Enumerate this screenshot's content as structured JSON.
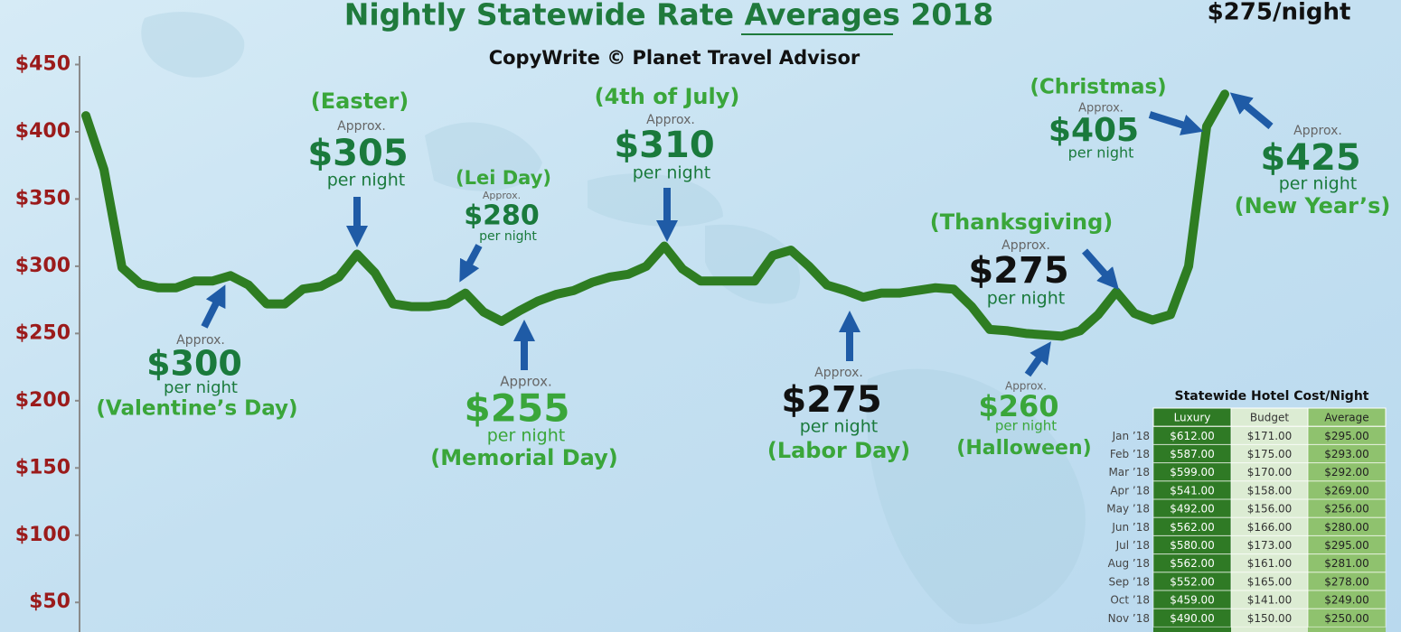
{
  "chart_data": {
    "type": "line",
    "title": "Nightly Statewide Rate Averages 2018",
    "subtitle": "CopyWrite © Planet Travel Advisor",
    "corner_note": "$275/night",
    "ylim": [
      28,
      498
    ],
    "yticks": [
      {
        "value": 50,
        "label": "$50"
      },
      {
        "value": 100,
        "label": "$100"
      },
      {
        "value": 150,
        "label": "$150"
      },
      {
        "value": 200,
        "label": "$200"
      },
      {
        "value": 250,
        "label": "$250"
      },
      {
        "value": 300,
        "label": "$300"
      },
      {
        "value": 350,
        "label": "$350"
      },
      {
        "value": 400,
        "label": "$400"
      },
      {
        "value": 450,
        "label": "$450"
      }
    ],
    "color": "#2e7d22",
    "values": [
      412,
      372,
      299,
      287,
      284,
      284,
      289,
      289,
      293,
      286,
      272,
      272,
      283,
      285,
      292,
      309,
      295,
      272,
      270,
      270,
      272,
      280,
      266,
      259,
      267,
      274,
      279,
      282,
      288,
      292,
      294,
      300,
      315,
      298,
      289,
      289,
      289,
      289,
      308,
      312,
      300,
      286,
      282,
      277,
      280,
      280,
      282,
      284,
      283,
      270,
      253,
      252,
      250,
      249,
      248,
      252,
      264,
      281,
      265,
      260,
      264,
      300,
      404,
      428
    ],
    "annotations": [
      {
        "holiday": "(Valentine’s Day)",
        "approx": "Approx.",
        "price": "$300",
        "per_night": "per night",
        "color": "#1a7a3c"
      },
      {
        "holiday": "(Easter)",
        "approx": "Approx.",
        "price": "$305",
        "per_night": "per night",
        "color": "#1a7a3c"
      },
      {
        "holiday": "(Lei Day)",
        "approx": "Approx.",
        "price": "$280",
        "per_night": "per night",
        "color": "#1a7a3c"
      },
      {
        "holiday": "(Memorial Day)",
        "approx": "Approx.",
        "price": "$255",
        "per_night": "per night",
        "color": "#3aa63a"
      },
      {
        "holiday": "(4th of July)",
        "approx": "Approx.",
        "price": "$310",
        "per_night": "per night",
        "color": "#1a7a3c"
      },
      {
        "holiday": "(Labor Day)",
        "approx": "Approx.",
        "price": "$275",
        "per_night": "per night",
        "color": "#111111"
      },
      {
        "holiday": "(Halloween)",
        "approx": "Approx.",
        "price": "$260",
        "per_night": "per night",
        "color": "#3aa63a"
      },
      {
        "holiday": "(Thanksgiving)",
        "approx": "Approx.",
        "price": "$275",
        "per_night": "per night",
        "color": "#111111"
      },
      {
        "holiday": "(Christmas)",
        "approx": "Approx.",
        "price": "$405",
        "per_night": "per night",
        "color": "#1a7a3c"
      },
      {
        "holiday": "(New Year’s)",
        "approx": "Approx.",
        "price": "$425",
        "per_night": "per night",
        "color": "#1a7a3c"
      }
    ],
    "table": {
      "title": "Statewide Hotel Cost/Night",
      "columns": [
        "Luxury",
        "Budget",
        "Average"
      ],
      "rows": [
        {
          "label": "Jan ’18",
          "cells": [
            "$612.00",
            "$171.00",
            "$295.00"
          ]
        },
        {
          "label": "Feb ’18",
          "cells": [
            "$587.00",
            "$175.00",
            "$293.00"
          ]
        },
        {
          "label": "Mar ’18",
          "cells": [
            "$599.00",
            "$170.00",
            "$292.00"
          ]
        },
        {
          "label": "Apr ’18",
          "cells": [
            "$541.00",
            "$158.00",
            "$269.00"
          ]
        },
        {
          "label": "May ’18",
          "cells": [
            "$492.00",
            "$156.00",
            "$256.00"
          ]
        },
        {
          "label": "Jun ’18",
          "cells": [
            "$562.00",
            "$166.00",
            "$280.00"
          ]
        },
        {
          "label": "Jul ’18",
          "cells": [
            "$580.00",
            "$173.00",
            "$295.00"
          ]
        },
        {
          "label": "Aug ’18",
          "cells": [
            "$562.00",
            "$161.00",
            "$281.00"
          ]
        },
        {
          "label": "Sep ’18",
          "cells": [
            "$552.00",
            "$165.00",
            "$278.00"
          ]
        },
        {
          "label": "Oct ’18",
          "cells": [
            "$459.00",
            "$141.00",
            "$249.00"
          ]
        },
        {
          "label": "Nov ’18",
          "cells": [
            "$490.00",
            "$150.00",
            "$250.00"
          ]
        }
      ]
    }
  }
}
